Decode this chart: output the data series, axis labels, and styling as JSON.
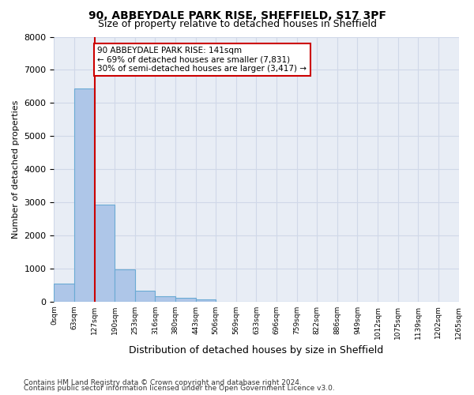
{
  "title1": "90, ABBEYDALE PARK RISE, SHEFFIELD, S17 3PF",
  "title2": "Size of property relative to detached houses in Sheffield",
  "xlabel": "Distribution of detached houses by size in Sheffield",
  "ylabel": "Number of detached properties",
  "footnote1": "Contains HM Land Registry data © Crown copyright and database right 2024.",
  "footnote2": "Contains public sector information licensed under the Open Government Licence v3.0.",
  "bar_counts": [
    530,
    6430,
    2930,
    970,
    330,
    155,
    100,
    65,
    0,
    0,
    0,
    0,
    0,
    0,
    0,
    0,
    0,
    0,
    0,
    0
  ],
  "bin_labels": [
    "0sqm",
    "63sqm",
    "127sqm",
    "190sqm",
    "253sqm",
    "316sqm",
    "380sqm",
    "443sqm",
    "506sqm",
    "569sqm",
    "633sqm",
    "696sqm",
    "759sqm",
    "822sqm",
    "886sqm",
    "949sqm",
    "1012sqm",
    "1075sqm",
    "1139sqm",
    "1202sqm",
    "1265sqm"
  ],
  "bar_color": "#aec6e8",
  "bar_edge_color": "#6aaad4",
  "grid_color": "#d0d8e8",
  "bg_color": "#e8edf5",
  "vline_x": 2,
  "vline_color": "#cc0000",
  "annotation_text": "90 ABBEYDALE PARK RISE: 141sqm\n← 69% of detached houses are smaller (7,831)\n30% of semi-detached houses are larger (3,417) →",
  "annotation_box_color": "#cc0000",
  "ylim": [
    0,
    8000
  ],
  "yticks": [
    0,
    1000,
    2000,
    3000,
    4000,
    5000,
    6000,
    7000,
    8000
  ]
}
